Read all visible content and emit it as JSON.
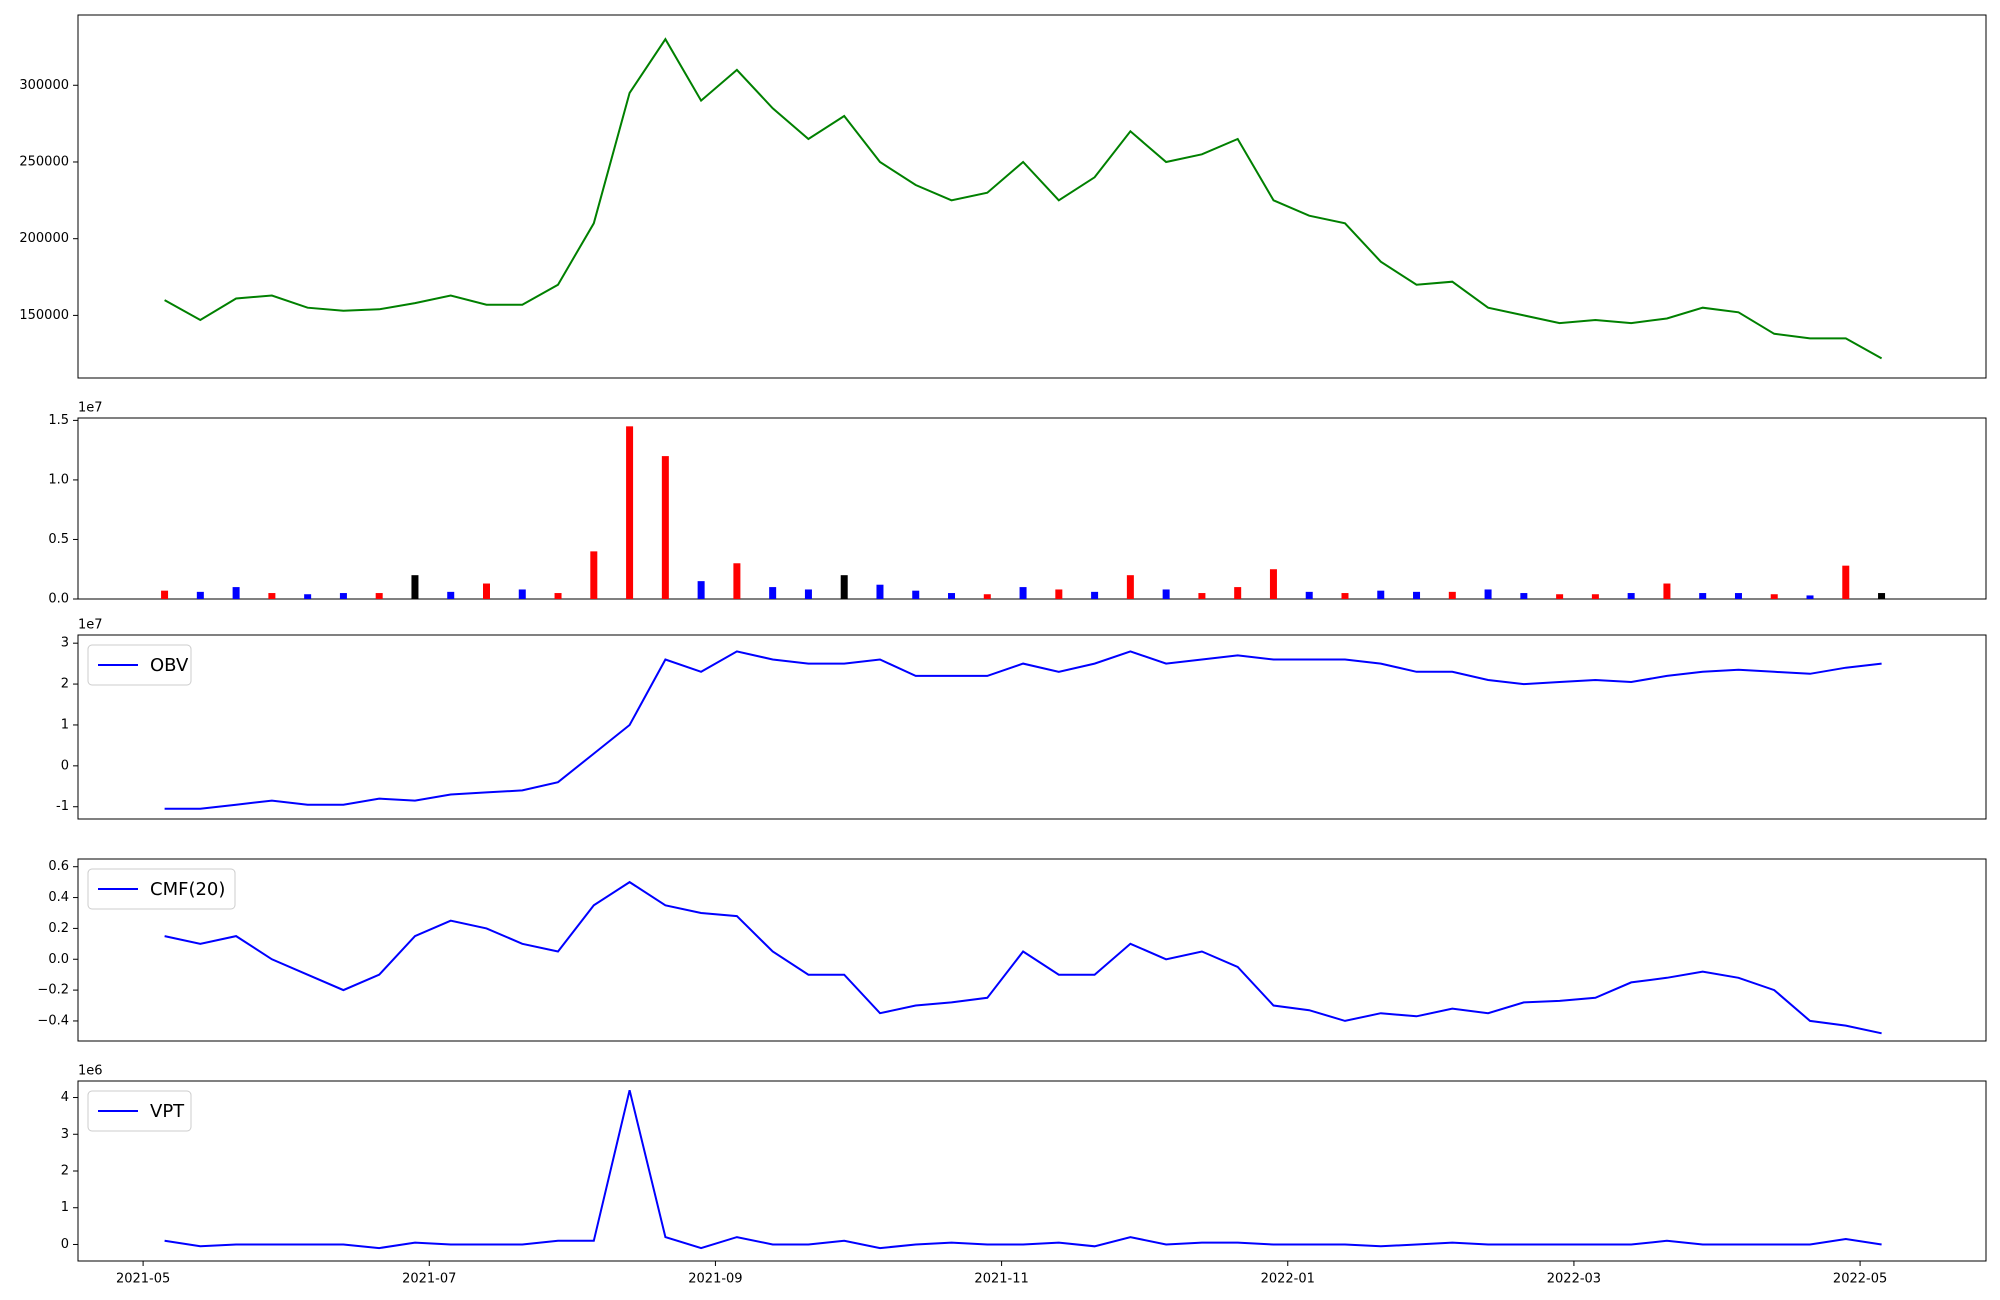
{
  "chart_data": [
    {
      "type": "line",
      "color": "#008000",
      "values": [
        160000,
        147000,
        161000,
        163000,
        155000,
        153000,
        154000,
        158000,
        163000,
        157000,
        157000,
        170000,
        210000,
        295000,
        330000,
        290000,
        310000,
        285000,
        265000,
        280000,
        250000,
        235000,
        225000,
        230000,
        250000,
        225000,
        240000,
        270000,
        250000,
        255000,
        265000,
        225000,
        215000,
        210000,
        185000,
        170000,
        172000,
        155000,
        150000,
        145000,
        147000,
        145000,
        148000,
        155000,
        152000,
        138000,
        135000,
        135000,
        122000
      ],
      "ylim": [
        109200,
        345800
      ],
      "yticks": [
        150000,
        200000,
        250000,
        300000
      ]
    },
    {
      "type": "bar",
      "offset": "1e7",
      "values": [
        0.07,
        0.06,
        0.1,
        0.05,
        0.04,
        0.05,
        0.05,
        0.2,
        0.06,
        0.13,
        0.08,
        0.05,
        0.4,
        1.45,
        1.2,
        0.15,
        0.3,
        0.1,
        0.08,
        0.2,
        0.12,
        0.07,
        0.05,
        0.04,
        0.1,
        0.08,
        0.06,
        0.2,
        0.08,
        0.05,
        0.1,
        0.25,
        0.06,
        0.05,
        0.07,
        0.06,
        0.06,
        0.08,
        0.05,
        0.04,
        0.04,
        0.05,
        0.13,
        0.05,
        0.05,
        0.04,
        0.03,
        0.28,
        0.05
      ],
      "colors": [
        "#ff0000",
        "#0000ff",
        "#0000ff",
        "#ff0000",
        "#0000ff",
        "#0000ff",
        "#ff0000",
        "#000000",
        "#0000ff",
        "#ff0000",
        "#0000ff",
        "#ff0000",
        "#ff0000",
        "#ff0000",
        "#ff0000",
        "#0000ff",
        "#ff0000",
        "#0000ff",
        "#0000ff",
        "#000000",
        "#0000ff",
        "#0000ff",
        "#0000ff",
        "#ff0000",
        "#0000ff",
        "#ff0000",
        "#0000ff",
        "#ff0000",
        "#0000ff",
        "#ff0000",
        "#ff0000",
        "#ff0000",
        "#0000ff",
        "#ff0000",
        "#0000ff",
        "#0000ff",
        "#ff0000",
        "#0000ff",
        "#0000ff",
        "#ff0000",
        "#ff0000",
        "#0000ff",
        "#ff0000",
        "#0000ff",
        "#0000ff",
        "#ff0000",
        "#0000ff",
        "#ff0000",
        "#000000"
      ],
      "ylim": [
        0,
        1.52
      ],
      "yticks": [
        {
          "value": 0,
          "label": "0.0"
        },
        {
          "value": 0.5,
          "label": "0.5"
        },
        {
          "value": 1,
          "label": "1.0"
        },
        {
          "value": 1.5,
          "label": "1.5"
        }
      ]
    },
    {
      "type": "line",
      "offset": "1e7",
      "legend": "upper left",
      "series": [
        {
          "name": "OBV",
          "color": "#0000ff",
          "values": [
            -1.05,
            -1.05,
            -0.95,
            -0.85,
            -0.95,
            -0.95,
            -0.8,
            -0.85,
            -0.7,
            -0.65,
            -0.6,
            -0.4,
            0.3,
            1.0,
            2.6,
            2.3,
            2.8,
            2.6,
            2.5,
            2.5,
            2.6,
            2.2,
            2.2,
            2.2,
            2.5,
            2.3,
            2.5,
            2.8,
            2.5,
            2.6,
            2.7,
            2.6,
            2.6,
            2.6,
            2.5,
            2.3,
            2.3,
            2.1,
            2.0,
            2.05,
            2.1,
            2.05,
            2.2,
            2.3,
            2.35,
            2.3,
            2.25,
            2.4,
            2.5
          ]
        }
      ],
      "ylim": [
        -1.3,
        3.2
      ],
      "yticks": [
        -1,
        0,
        1,
        2,
        3
      ]
    },
    {
      "type": "line",
      "legend": "upper left",
      "series": [
        {
          "name": "CMF(20)",
          "color": "#0000ff",
          "values": [
            0.15,
            0.1,
            0.15,
            0.0,
            -0.1,
            -0.2,
            -0.1,
            0.15,
            0.25,
            0.2,
            0.1,
            0.05,
            0.35,
            0.5,
            0.35,
            0.3,
            0.28,
            0.05,
            -0.1,
            -0.1,
            -0.35,
            -0.3,
            -0.28,
            -0.25,
            0.05,
            -0.1,
            -0.1,
            0.1,
            0.0,
            0.05,
            -0.05,
            -0.3,
            -0.33,
            -0.4,
            -0.35,
            -0.37,
            -0.32,
            -0.35,
            -0.28,
            -0.27,
            -0.25,
            -0.15,
            -0.12,
            -0.08,
            -0.12,
            -0.2,
            -0.4,
            -0.43,
            -0.48
          ]
        }
      ],
      "ylim": [
        -0.53,
        0.65
      ],
      "yticks": [
        {
          "value": -0.4,
          "label": "−0.4"
        },
        {
          "value": -0.2,
          "label": "−0.2"
        },
        {
          "value": 0,
          "label": "0.0"
        },
        {
          "value": 0.2,
          "label": "0.2"
        },
        {
          "value": 0.4,
          "label": "0.4"
        },
        {
          "value": 0.6,
          "label": "0.6"
        }
      ]
    },
    {
      "type": "line",
      "offset": "1e6",
      "legend": "upper left",
      "series": [
        {
          "name": "VPT",
          "color": "#0000ff",
          "values": [
            0.1,
            -0.05,
            0,
            0,
            0,
            0,
            -0.1,
            0.05,
            0,
            0,
            0,
            0.1,
            0.1,
            4.2,
            0.2,
            -0.1,
            0.2,
            0,
            0,
            0.1,
            -0.1,
            0,
            0.05,
            0,
            0,
            0.05,
            -0.05,
            0.2,
            0,
            0.05,
            0.05,
            0,
            0,
            0,
            -0.05,
            0,
            0.05,
            0,
            0,
            0,
            0,
            0,
            0.1,
            0,
            0,
            0,
            0,
            0.15,
            0
          ]
        }
      ],
      "ylim": [
        -0.45,
        4.45
      ],
      "yticks": [
        0,
        1,
        2,
        3,
        4
      ],
      "x": [
        0.15,
        0.4,
        0.65,
        0.9,
        1.15,
        1.4,
        1.65,
        1.9,
        2.15,
        2.4,
        2.65,
        2.9,
        3.15,
        3.4,
        3.65,
        3.9,
        4.15,
        4.4,
        4.65,
        4.9,
        5.15,
        5.4,
        5.65,
        5.9,
        6.15,
        6.4,
        6.65,
        6.9,
        7.15,
        7.4,
        7.65,
        7.9,
        8.15,
        8.4,
        8.65,
        8.9,
        9.15,
        9.4,
        9.65,
        9.9,
        10.15,
        10.4,
        10.65,
        10.9,
        11.15,
        11.4,
        11.65,
        11.9,
        12.15
      ],
      "xlim": [
        -0.455,
        12.88
      ],
      "xticks": [
        {
          "value": 0,
          "label": "2021-05"
        },
        {
          "value": 2,
          "label": "2021-07"
        },
        {
          "value": 4,
          "label": "2021-09"
        },
        {
          "value": 6,
          "label": "2021-11"
        },
        {
          "value": 8,
          "label": "2022-01"
        },
        {
          "value": 10,
          "label": "2022-03"
        },
        {
          "value": 12,
          "label": "2022-05"
        }
      ]
    }
  ]
}
